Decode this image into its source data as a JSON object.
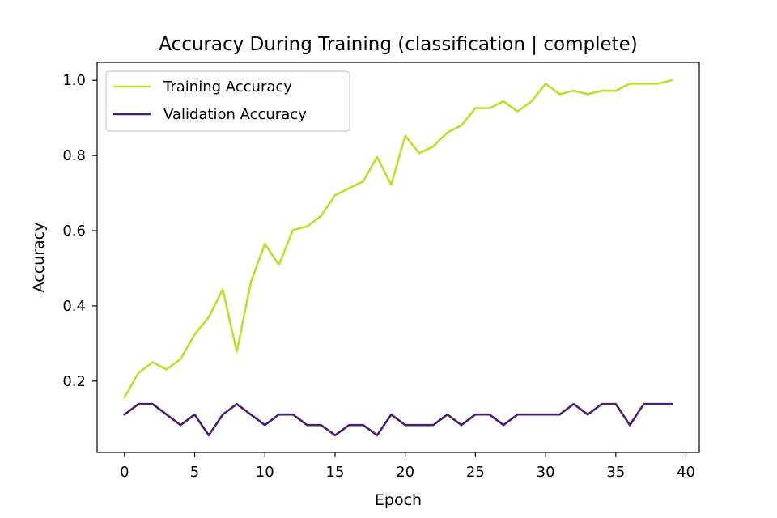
{
  "chart_data": {
    "type": "line",
    "title": "Accuracy During Training (classification | complete)",
    "xlabel": "Epoch",
    "ylabel": "Accuracy",
    "xlim": [
      -1.95,
      40.95
    ],
    "ylim": [
      0.0103,
      1.0477
    ],
    "x_ticks": [
      0,
      5,
      10,
      15,
      20,
      25,
      30,
      35,
      40
    ],
    "x_tick_labels": [
      "0",
      "5",
      "10",
      "15",
      "20",
      "25",
      "30",
      "35",
      "40"
    ],
    "y_ticks": [
      0.2,
      0.4,
      0.6,
      0.8,
      1.0
    ],
    "y_tick_labels": [
      "0.2",
      "0.4",
      "0.6",
      "0.8",
      "1.0"
    ],
    "grid": false,
    "legend_position": "top-left",
    "x": [
      0,
      1,
      2,
      3,
      4,
      5,
      6,
      7,
      8,
      9,
      10,
      11,
      12,
      13,
      14,
      15,
      16,
      17,
      18,
      19,
      20,
      21,
      22,
      23,
      24,
      25,
      26,
      27,
      28,
      29,
      30,
      31,
      32,
      33,
      34,
      35,
      36,
      37,
      38,
      39
    ],
    "series": [
      {
        "name": "Training Accuracy",
        "color": "#bcdf27",
        "values": [
          0.157,
          0.222,
          0.25,
          0.231,
          0.259,
          0.324,
          0.37,
          0.444,
          0.278,
          0.463,
          0.565,
          0.509,
          0.602,
          0.611,
          0.639,
          0.694,
          0.713,
          0.731,
          0.796,
          0.722,
          0.852,
          0.806,
          0.824,
          0.861,
          0.88,
          0.926,
          0.926,
          0.944,
          0.917,
          0.944,
          0.991,
          0.963,
          0.972,
          0.963,
          0.972,
          0.972,
          0.991,
          0.991,
          0.991,
          1.0
        ]
      },
      {
        "name": "Validation Accuracy",
        "color": "#46206f",
        "values": [
          0.111,
          0.139,
          0.139,
          0.111,
          0.083,
          0.111,
          0.056,
          0.111,
          0.139,
          0.111,
          0.083,
          0.111,
          0.111,
          0.083,
          0.083,
          0.056,
          0.083,
          0.083,
          0.056,
          0.111,
          0.083,
          0.083,
          0.083,
          0.111,
          0.083,
          0.111,
          0.111,
          0.083,
          0.111,
          0.111,
          0.111,
          0.111,
          0.139,
          0.111,
          0.139,
          0.139,
          0.083,
          0.139,
          0.139,
          0.139
        ]
      }
    ]
  }
}
